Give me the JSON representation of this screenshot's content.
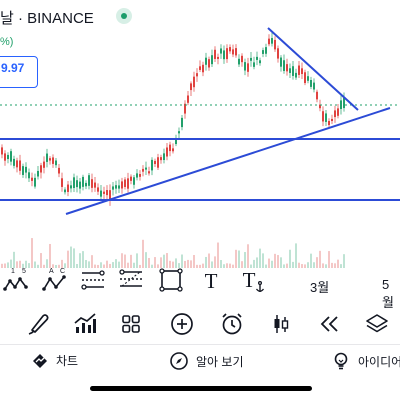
{
  "header": {
    "title": "날 · BINANCE",
    "change_percent": "%)",
    "price_label": "9.97"
  },
  "x_axis": {
    "labels": [
      "3월",
      "5월"
    ]
  },
  "drawing_toolbar": {
    "items": [
      {
        "name": "xabcd-pattern-tool",
        "glyph_top": "1 5"
      },
      {
        "name": "abcd-pattern-tool",
        "glyph_top": "A C"
      },
      {
        "name": "fib-retracement-tool"
      },
      {
        "name": "trend-based-fib-tool"
      },
      {
        "name": "rectangle-tool"
      },
      {
        "name": "text-tool",
        "glyph": "T"
      },
      {
        "name": "anchored-text-tool",
        "glyph": "T"
      }
    ]
  },
  "main_toolbar": {
    "items": [
      "brush",
      "indicators",
      "templates",
      "add",
      "alert",
      "candles",
      "replay",
      "layers"
    ]
  },
  "bottom_nav": {
    "chart_label": "차트",
    "ideas_view_label": "알아 보기",
    "ideas_label": "아이디어"
  },
  "colors": {
    "line": "#2c4bd6",
    "up": "#22a06b",
    "down": "#e0423f",
    "accent": "#2962ff"
  }
}
